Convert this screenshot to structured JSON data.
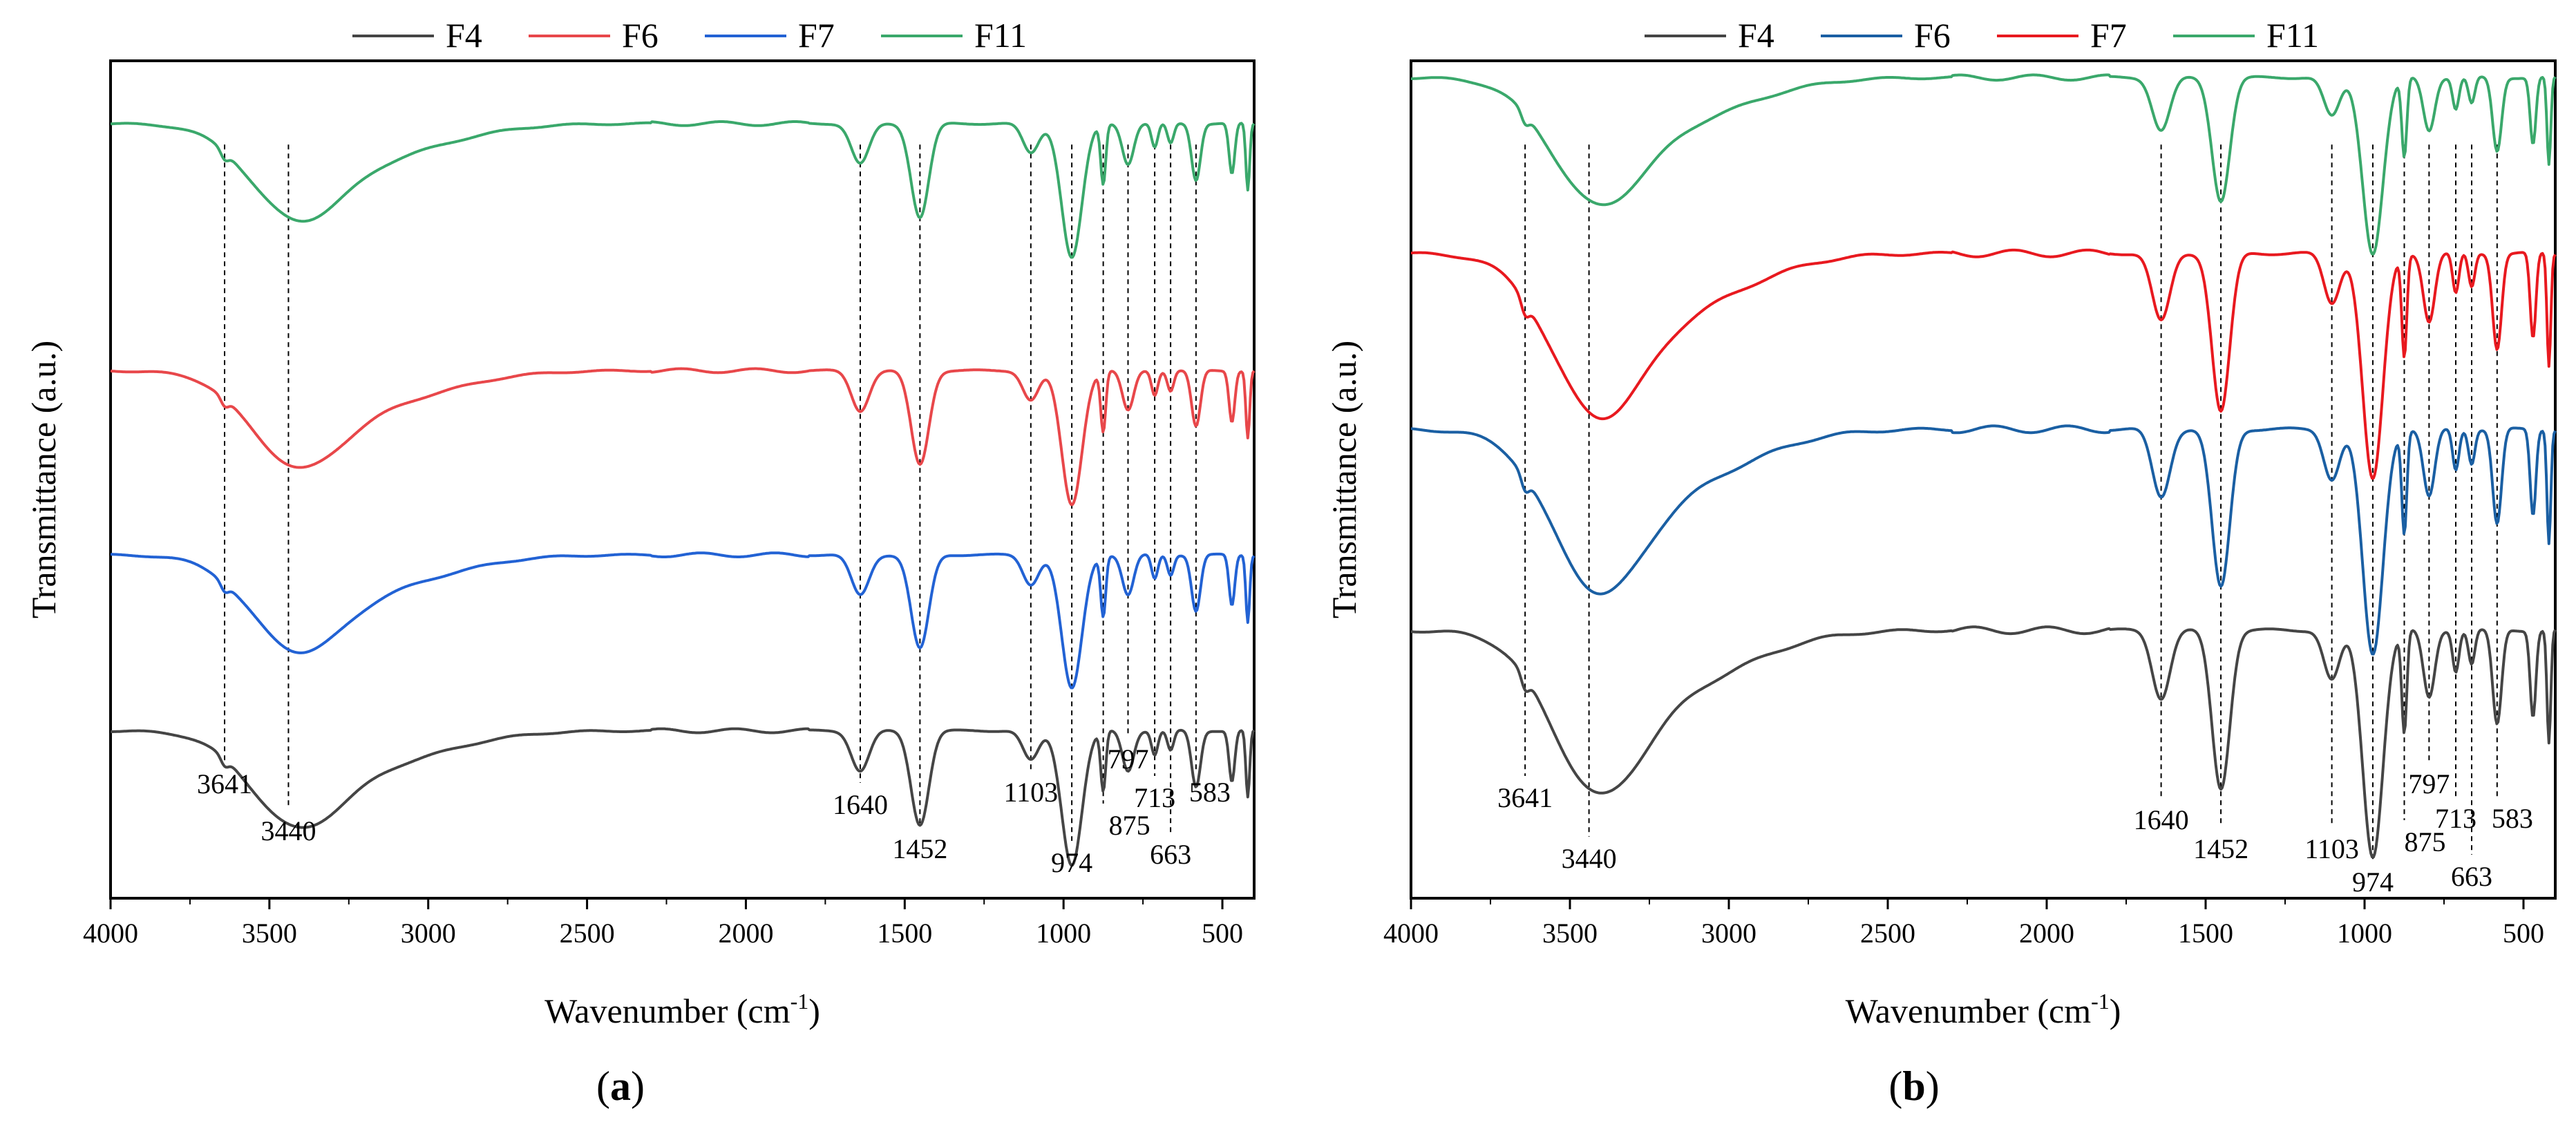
{
  "chart_data": [
    {
      "type": "line",
      "panel_label": "a",
      "xlabel": "Wavenumber (cm",
      "xlabel_sup": "-1",
      "xlabel_end": ")",
      "ylabel": "Transmittance (a.u.)",
      "xlim": [
        4000,
        400
      ],
      "xticks": [
        "4000",
        "3500",
        "3000",
        "2500",
        "2000",
        "1500",
        "1000",
        "500"
      ],
      "legend_position": "top-center",
      "series": [
        {
          "name": "F4",
          "color": "#454545",
          "base": 0.2,
          "depth": 0.16
        },
        {
          "name": "F6",
          "color": "#e8474a",
          "base": 0.63,
          "depth": 0.16
        },
        {
          "name": "F7",
          "color": "#2262d4",
          "base": 0.41,
          "depth": 0.16
        },
        {
          "name": "F11",
          "color": "#3aa86b",
          "base": 0.925,
          "depth": 0.16
        }
      ],
      "peaks": [
        "3641",
        "3440",
        "1640",
        "1452",
        "1103",
        "974",
        "875",
        "797",
        "713",
        "663",
        "583"
      ]
    },
    {
      "type": "line",
      "panel_label": "b",
      "xlabel": "Wavenumber (cm",
      "xlabel_sup": "-1",
      "xlabel_end": ")",
      "ylabel": "Transmittance (a.u.)",
      "xlim": [
        4000,
        400
      ],
      "xticks": [
        "4000",
        "3500",
        "3000",
        "2500",
        "2000",
        "1500",
        "1000",
        "500"
      ],
      "legend_position": "top-center",
      "series": [
        {
          "name": "F4",
          "color": "#454545",
          "base": 0.32,
          "depth": 0.27
        },
        {
          "name": "F6",
          "color": "#1a5fa3",
          "base": 0.56,
          "depth": 0.27
        },
        {
          "name": "F7",
          "color": "#e8191f",
          "base": 0.77,
          "depth": 0.27
        },
        {
          "name": "F11",
          "color": "#3aa86b",
          "base": 0.98,
          "depth": 0.21
        }
      ],
      "peaks": [
        "3641",
        "3440",
        "1640",
        "1452",
        "1103",
        "974",
        "875",
        "797",
        "713",
        "663",
        "583"
      ]
    }
  ]
}
